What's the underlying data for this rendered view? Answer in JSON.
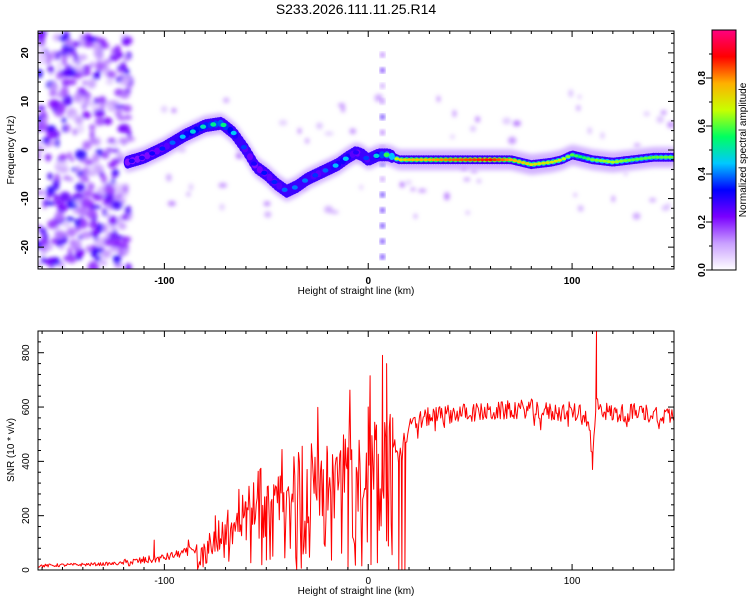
{
  "title": "S233.2026.111.11.25.R14",
  "chart_data": [
    {
      "type": "heatmap",
      "panel": "top",
      "xlabel": "Height of straight line (km)",
      "ylabel": "Frequency (Hz)",
      "xlim": [
        -162,
        150
      ],
      "ylim": [
        -24.5,
        24.5
      ],
      "xticks": [
        -100,
        0,
        100
      ],
      "yticks": [
        -20,
        -10,
        0,
        10,
        20
      ],
      "colorbar": {
        "label": "Normalized spectral amplitude",
        "range": [
          0.0,
          1.0
        ],
        "ticks": [
          "0.0",
          "0.2",
          "0.4",
          "0.6",
          "0.8"
        ],
        "tick_values": [
          0.0,
          0.2,
          0.4,
          0.6,
          0.8
        ],
        "colors": [
          "#ffffff",
          "#c9a0ff",
          "#7a00ff",
          "#0000ff",
          "#00c8ff",
          "#00ff60",
          "#c8ff00",
          "#ffb000",
          "#ff0000",
          "#ff0080"
        ]
      },
      "ridge": {
        "x": [
          -118,
          -110,
          -100,
          -90,
          -80,
          -72,
          -66,
          -60,
          -55,
          -50,
          -45,
          -40,
          -35,
          -30,
          -25,
          -20,
          -15,
          -10,
          -6,
          -3,
          0,
          5,
          10,
          15,
          20,
          30,
          40,
          50,
          60,
          70,
          80,
          90,
          95,
          100,
          105,
          110,
          120,
          130,
          140,
          150
        ],
        "freq": [
          -2.5,
          -1.5,
          0.5,
          3,
          5,
          5.5,
          3.5,
          0,
          -3.5,
          -5,
          -7,
          -8.5,
          -7.5,
          -6,
          -5,
          -4,
          -3,
          -1.5,
          -0.5,
          -1,
          -2,
          -1,
          -1,
          -2,
          -2,
          -2,
          -2,
          -2,
          -2,
          -2,
          -3,
          -2.5,
          -2,
          -1,
          -1.5,
          -2,
          -2.5,
          -2,
          -1.5,
          -1.5
        ],
        "amp": [
          0.3,
          0.3,
          0.35,
          0.45,
          0.5,
          0.55,
          0.45,
          0.35,
          0.3,
          0.35,
          0.35,
          0.4,
          0.4,
          0.4,
          0.35,
          0.4,
          0.45,
          0.45,
          0.3,
          0.4,
          0.35,
          0.5,
          0.6,
          0.7,
          0.75,
          0.78,
          0.82,
          0.85,
          0.88,
          0.78,
          0.7,
          0.7,
          0.68,
          0.6,
          0.55,
          0.62,
          0.65,
          0.6,
          0.6,
          0.62
        ]
      }
    },
    {
      "type": "line",
      "panel": "bottom",
      "xlabel": "Height of straight line (km)",
      "ylabel": "SNR (10 * v/v)",
      "xlim": [
        -162,
        150
      ],
      "ylim": [
        0,
        880
      ],
      "xticks": [
        -100,
        0,
        100
      ],
      "yticks": [
        0,
        200,
        400,
        600,
        800
      ],
      "color": "#ff0000",
      "series": [
        {
          "name": "SNR",
          "x": [
            -162,
            -150,
            -140,
            -130,
            -120,
            -110,
            -100,
            -90,
            -80,
            -70,
            -60,
            -50,
            -40,
            -30,
            -20,
            -10,
            0,
            5,
            8,
            10,
            13,
            15,
            16,
            18,
            20,
            25,
            30,
            40,
            50,
            60,
            70,
            80,
            90,
            100,
            105,
            108,
            110,
            112,
            115,
            120,
            130,
            140,
            150
          ],
          "y": [
            15,
            18,
            20,
            22,
            25,
            35,
            45,
            65,
            90,
            130,
            175,
            215,
            260,
            300,
            330,
            355,
            380,
            410,
            440,
            460,
            450,
            430,
            420,
            480,
            520,
            550,
            565,
            575,
            580,
            580,
            590,
            595,
            580,
            585,
            570,
            560,
            400,
            620,
            590,
            575,
            580,
            575,
            570
          ],
          "peaks": [
            {
              "x": -105,
              "y": 110
            },
            {
              "x": -75,
              "y": 200
            },
            {
              "x": -60,
              "y": 250
            },
            {
              "x": -50,
              "y": 270
            },
            {
              "x": -40,
              "y": 290
            },
            {
              "x": -30,
              "y": 370
            },
            {
              "x": -20,
              "y": 430
            },
            {
              "x": -10,
              "y": 450
            },
            {
              "x": 0,
              "y": 600
            },
            {
              "x": 7,
              "y": 790
            },
            {
              "x": 9,
              "y": 760
            },
            {
              "x": 12,
              "y": 560
            },
            {
              "x": 112,
              "y": 880
            }
          ],
          "dips": [
            {
              "x": 15,
              "y": 0
            },
            {
              "x": 16.5,
              "y": 0
            },
            {
              "x": 18,
              "y": 0
            },
            {
              "x": 110,
              "y": 370
            }
          ]
        }
      ]
    }
  ]
}
